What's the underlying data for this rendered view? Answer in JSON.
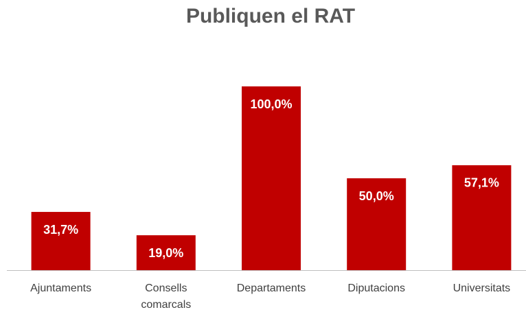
{
  "chart_data": {
    "type": "bar",
    "title": "Publiquen el RAT",
    "categories": [
      "Ajuntaments",
      "Consells comarcals",
      "Departaments",
      "Diputacions",
      "Universitats"
    ],
    "values": [
      31.7,
      19.0,
      100.0,
      50.0,
      57.1
    ],
    "value_labels": [
      "31,7%",
      "19,0%",
      "100,0%",
      "50,0%",
      "57,1%"
    ],
    "color": "#c00000"
  }
}
